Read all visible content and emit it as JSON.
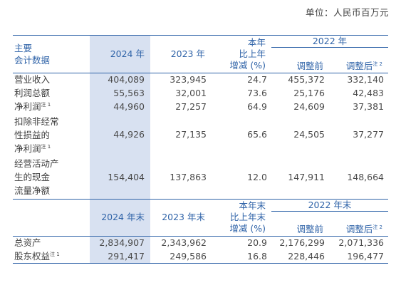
{
  "unit_label": "单位：人民币百万元",
  "header1": {
    "col0": [
      "主要",
      "会计数据"
    ],
    "col1": "2024 年",
    "col2": "2023 年",
    "col3": [
      "本年",
      "比上年",
      "增减 (%)"
    ],
    "group": "2022 年",
    "col4": "调整前",
    "col5": "调整后",
    "col5_note": "注 2"
  },
  "rows1": [
    {
      "label": [
        "营业收入"
      ],
      "note": "",
      "v2024": "404,089",
      "v2023": "323,945",
      "chg": "24.7",
      "pre": "455,372",
      "post": "332,140"
    },
    {
      "label": [
        "利润总额"
      ],
      "note": "",
      "v2024": "55,563",
      "v2023": "32,001",
      "chg": "73.6",
      "pre": "25,176",
      "post": "42,483"
    },
    {
      "label": [
        "净利润"
      ],
      "note": "注 1",
      "v2024": "44,960",
      "v2023": "27,257",
      "chg": "64.9",
      "pre": "24,609",
      "post": "37,381"
    },
    {
      "label": [
        "扣除非经常",
        "性损益的",
        "净利润"
      ],
      "note": "注 1",
      "v2024": "44,926",
      "v2023": "27,135",
      "chg": "65.6",
      "pre": "24,505",
      "post": "37,277"
    },
    {
      "label": [
        "经营活动产",
        "生的现金",
        "流量净额"
      ],
      "note": "",
      "v2024": "154,404",
      "v2023": "137,863",
      "chg": "12.0",
      "pre": "147,911",
      "post": "148,664"
    }
  ],
  "header2": {
    "col1": "2024 年末",
    "col2": "2023 年末",
    "col3": [
      "本年末",
      "比上年末",
      "增减 (%)"
    ],
    "group": "2022 年末",
    "col4": "调整前",
    "col5": "调整后",
    "col5_note": "注 2"
  },
  "rows2": [
    {
      "label": [
        "总资产"
      ],
      "note": "",
      "v2024": "2,834,907",
      "v2023": "2,343,962",
      "chg": "20.9",
      "pre": "2,176,299",
      "post": "2,071,336"
    },
    {
      "label": [
        "股东权益"
      ],
      "note": "注 1",
      "v2024": "291,417",
      "v2023": "249,586",
      "chg": "16.8",
      "pre": "228,446",
      "post": "196,477"
    }
  ]
}
